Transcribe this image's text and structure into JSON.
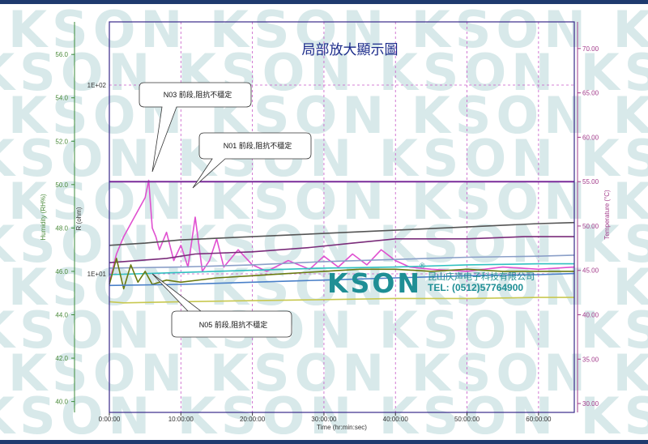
{
  "title": "局部放大顯示圖",
  "watermark": "KSON",
  "logo": {
    "text": "KSON",
    "company": "昆山庆声电子科技有限公司",
    "tel": "TEL: (0512)57764900",
    "reg": "®"
  },
  "axes": {
    "x_label": "Time (hr:min:sec)",
    "x_ticks": [
      "0:00:00",
      "10:00:00",
      "20:00:00",
      "30:00:00",
      "40:00:00",
      "50:00:00",
      "60:00:00"
    ],
    "left_label": "Humidity (RH%)",
    "left_ticks": [
      "56.0",
      "54.0",
      "52.0",
      "50.0",
      "48.0",
      "46.0",
      "44.0",
      "42.0",
      "40.0"
    ],
    "r_label": "R (ohm)",
    "r_ticks": [
      "1E+02",
      "1E+01"
    ],
    "right_label": "Temperature (°C)",
    "right_ticks": [
      "70.00",
      "65.00",
      "60.00",
      "55.00",
      "50.00",
      "45.00",
      "40.00",
      "35.00",
      "30.00"
    ]
  },
  "callouts": [
    "N03 前段,阻抗不穩定",
    "N01 前段,阻抗不穩定",
    "N05 前段,阻抗不穩定"
  ],
  "chart_data": {
    "type": "line",
    "title": "局部放大顯示圖",
    "xlabel": "Time (hr:min:sec)",
    "xlim_hours": [
      0,
      65
    ],
    "ylim_humidity": [
      39.5,
      57.5
    ],
    "ylim_temperature": [
      29,
      73
    ],
    "series": [
      {
        "color": "#e050d0",
        "axis": "humidity",
        "x": [
          0,
          1,
          2,
          3,
          4,
          5,
          5.5,
          6,
          6.5,
          7,
          8,
          9,
          10,
          11,
          12,
          13,
          14,
          15,
          16,
          18,
          20,
          22,
          25,
          28,
          30,
          32,
          34,
          36,
          38,
          40,
          42,
          45,
          50,
          55,
          60,
          65
        ],
        "values": [
          45.5,
          46.8,
          47.6,
          48.2,
          48.8,
          49.4,
          50.2,
          48.0,
          47.6,
          47.0,
          47.8,
          46.5,
          47.2,
          46.2,
          48.5,
          46.0,
          46.5,
          47.5,
          46.2,
          47.0,
          46.3,
          46.0,
          46.5,
          46.1,
          46.7,
          46.2,
          46.8,
          46.3,
          47.0,
          46.5,
          46.2,
          46.1,
          46.0,
          46.2,
          46.1,
          46.2
        ]
      },
      {
        "color": "#555555",
        "axis": "humidity",
        "x": [
          0,
          5,
          10,
          20,
          30,
          40,
          50,
          60,
          65
        ],
        "values": [
          47.2,
          47.3,
          47.45,
          47.6,
          47.75,
          47.9,
          48.05,
          48.2,
          48.25
        ]
      },
      {
        "color": "#7a2c7a",
        "axis": "humidity",
        "x": [
          0,
          4,
          8,
          12,
          20,
          28,
          34,
          40,
          50,
          58,
          62,
          65
        ],
        "values": [
          46.4,
          46.5,
          46.6,
          46.8,
          46.9,
          47.1,
          47.3,
          47.5,
          47.5,
          47.6,
          47.6,
          47.6
        ]
      },
      {
        "color": "#8a9fc8",
        "axis": "humidity",
        "x": [
          0,
          10,
          20,
          30,
          40,
          50,
          60,
          65
        ],
        "values": [
          46.15,
          46.2,
          46.3,
          46.45,
          46.55,
          46.65,
          46.7,
          46.75
        ]
      },
      {
        "color": "#30c0c0",
        "axis": "humidity",
        "x": [
          0,
          10,
          20,
          30,
          40,
          50,
          60,
          65
        ],
        "values": [
          45.85,
          45.95,
          46.05,
          46.15,
          46.2,
          46.3,
          46.35,
          46.35
        ]
      },
      {
        "color": "#6a7a10",
        "axis": "humidity",
        "x": [
          0,
          1,
          2,
          3,
          4,
          5,
          6,
          8,
          10,
          15,
          20,
          25,
          30,
          35,
          40,
          45,
          50,
          55,
          60,
          65
        ],
        "values": [
          45.4,
          46.6,
          45.2,
          46.3,
          45.5,
          46.0,
          45.4,
          45.6,
          45.5,
          45.7,
          45.8,
          45.9,
          46.0,
          46.1,
          46.1,
          46.0,
          46.1,
          46.0,
          46.0,
          46.0
        ]
      },
      {
        "color": "#4a80c8",
        "axis": "humidity",
        "x": [
          0,
          10,
          20,
          30,
          40,
          50,
          60,
          65
        ],
        "values": [
          45.35,
          45.4,
          45.5,
          45.6,
          45.7,
          45.8,
          45.85,
          45.9
        ]
      },
      {
        "color": "#c8c850",
        "axis": "humidity",
        "x": [
          0,
          2,
          10,
          20,
          30,
          40,
          50,
          60,
          65
        ],
        "values": [
          44.6,
          44.55,
          44.6,
          44.65,
          44.7,
          44.75,
          44.75,
          44.8,
          44.8
        ]
      },
      {
        "color": "#7a2c9a",
        "axis": "temperature",
        "x": [
          0,
          65
        ],
        "values": [
          55.0,
          55.0
        ]
      }
    ]
  }
}
